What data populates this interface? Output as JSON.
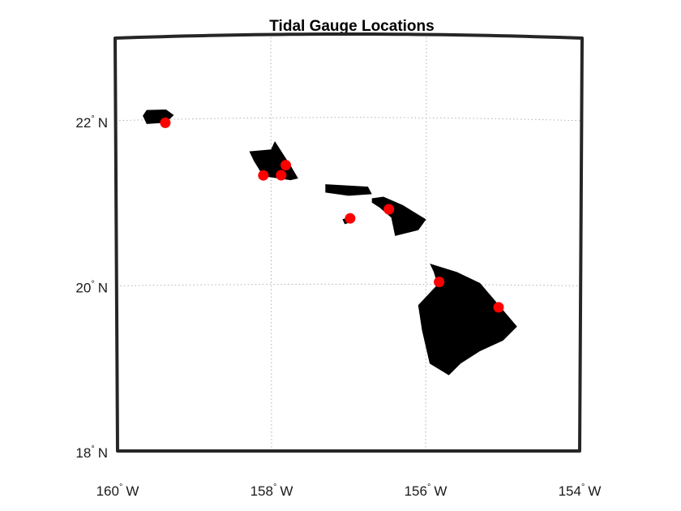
{
  "title": "Tidal Gauge Locations",
  "colors": {
    "land": "#000000",
    "marker": "#ff0000",
    "frame": "#262626",
    "grid": "#b0b0b0",
    "background": "#ffffff"
  },
  "chart_data": {
    "type": "scatter",
    "projection": "map",
    "title": "Tidal Gauge Locations",
    "lon_range": [
      -160,
      -154
    ],
    "lat_range": [
      18,
      23
    ],
    "grid": true,
    "x_ticks": [
      {
        "value": -160,
        "num": "160",
        "hemi": "W"
      },
      {
        "value": -158,
        "num": "158",
        "hemi": "W"
      },
      {
        "value": -156,
        "num": "156",
        "hemi": "W"
      },
      {
        "value": -154,
        "num": "154",
        "hemi": "W"
      }
    ],
    "y_ticks": [
      {
        "value": 18,
        "num": "18",
        "hemi": "N"
      },
      {
        "value": 20,
        "num": "20",
        "hemi": "N"
      },
      {
        "value": 22,
        "num": "22",
        "hemi": "N"
      }
    ],
    "islands": [
      {
        "name": "kauai",
        "points": [
          [
            -159.6,
            22.12
          ],
          [
            -159.35,
            22.12
          ],
          [
            -159.25,
            22.05
          ],
          [
            -159.35,
            21.96
          ],
          [
            -159.6,
            21.95
          ],
          [
            -159.65,
            22.05
          ]
        ]
      },
      {
        "name": "oahu",
        "points": [
          [
            -158.28,
            21.6
          ],
          [
            -158.0,
            21.62
          ],
          [
            -157.95,
            21.72
          ],
          [
            -157.8,
            21.5
          ],
          [
            -157.75,
            21.43
          ],
          [
            -157.65,
            21.27
          ],
          [
            -157.75,
            21.25
          ],
          [
            -158.1,
            21.3
          ],
          [
            -158.22,
            21.48
          ]
        ]
      },
      {
        "name": "molokai",
        "points": [
          [
            -157.3,
            21.2
          ],
          [
            -156.75,
            21.17
          ],
          [
            -156.7,
            21.08
          ],
          [
            -157.0,
            21.06
          ],
          [
            -157.3,
            21.1
          ]
        ]
      },
      {
        "name": "lanai",
        "points": [
          [
            -157.0,
            20.8
          ],
          [
            -156.95,
            20.75
          ],
          [
            -157.05,
            20.72
          ],
          [
            -157.08,
            20.78
          ]
        ]
      },
      {
        "name": "maui",
        "points": [
          [
            -156.7,
            21.03
          ],
          [
            -156.55,
            21.05
          ],
          [
            -156.3,
            20.95
          ],
          [
            -156.0,
            20.78
          ],
          [
            -156.1,
            20.65
          ],
          [
            -156.4,
            20.58
          ],
          [
            -156.45,
            20.8
          ],
          [
            -156.6,
            20.92
          ],
          [
            -156.7,
            20.98
          ]
        ]
      },
      {
        "name": "hawaii",
        "points": [
          [
            -155.95,
            20.25
          ],
          [
            -155.6,
            20.15
          ],
          [
            -155.3,
            20.02
          ],
          [
            -155.05,
            19.75
          ],
          [
            -154.82,
            19.5
          ],
          [
            -155.0,
            19.33
          ],
          [
            -155.3,
            19.2
          ],
          [
            -155.55,
            19.05
          ],
          [
            -155.7,
            18.91
          ],
          [
            -155.95,
            19.05
          ],
          [
            -156.05,
            19.45
          ],
          [
            -156.1,
            19.75
          ],
          [
            -155.85,
            20.0
          ],
          [
            -155.9,
            20.15
          ]
        ]
      }
    ],
    "gauges": [
      {
        "lon": -159.36,
        "lat": 21.96
      },
      {
        "lon": -158.1,
        "lat": 21.31
      },
      {
        "lon": -157.87,
        "lat": 21.31
      },
      {
        "lon": -157.81,
        "lat": 21.43
      },
      {
        "lon": -156.48,
        "lat": 20.9
      },
      {
        "lon": -156.98,
        "lat": 20.79
      },
      {
        "lon": -155.83,
        "lat": 20.03
      },
      {
        "lon": -155.06,
        "lat": 19.73
      }
    ]
  }
}
